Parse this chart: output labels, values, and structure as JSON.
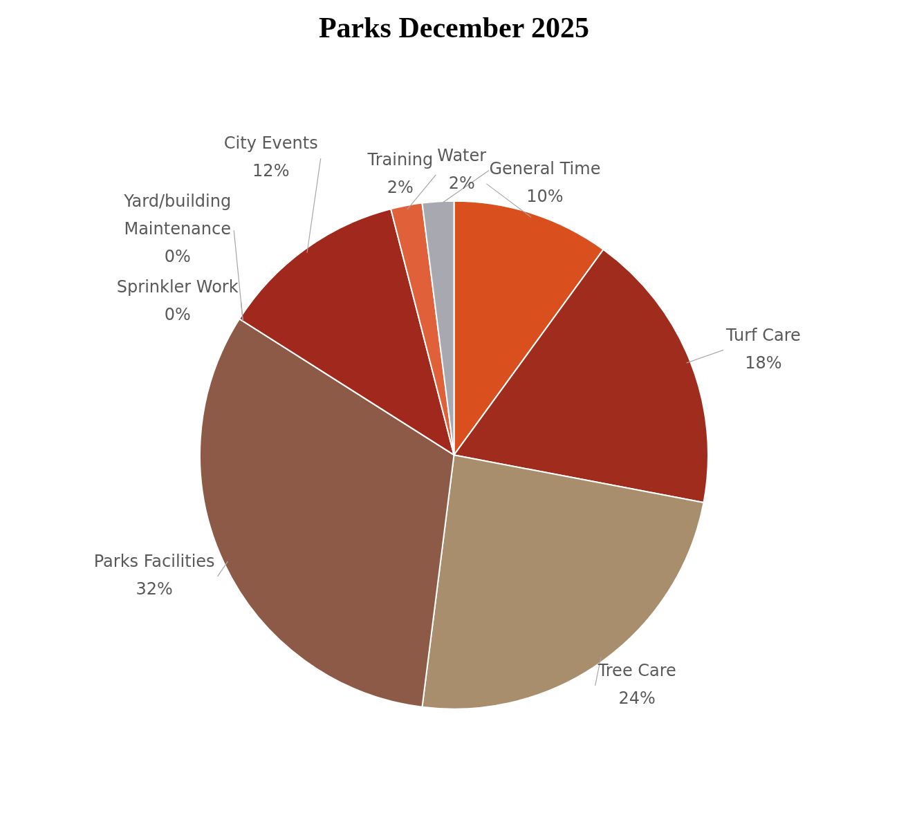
{
  "chart_data": {
    "type": "pie",
    "title": "Parks December 2025",
    "categories": [
      "General Time",
      "Turf Care",
      "Tree Care",
      "Parks Facilities",
      "Sprinkler Work",
      "Yard/building Maintenance",
      "City Events",
      "Training",
      "Water"
    ],
    "values": [
      10,
      18,
      24,
      32,
      0,
      0,
      12,
      2,
      2
    ],
    "value_labels": [
      "10%",
      "18%",
      "24%",
      "32%",
      "0%",
      "0%",
      "12%",
      "2%",
      "2%"
    ],
    "colors": [
      "#d9501e",
      "#a02c1e",
      "#a88e6c",
      "#8e5a48",
      "#e07050",
      "#c04030",
      "#a0281c",
      "#e0603a",
      "#a8a8b0"
    ],
    "legend": false
  }
}
